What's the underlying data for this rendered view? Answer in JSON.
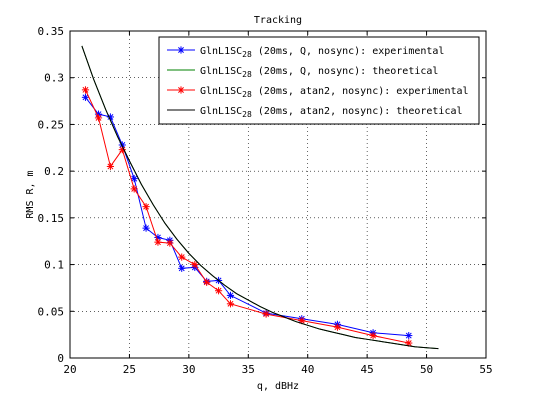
{
  "chart_data": {
    "type": "line",
    "title": "Tracking",
    "xlabel": "q, dBHz",
    "ylabel": "RMS R, m",
    "xlim": [
      20,
      55
    ],
    "ylim": [
      0,
      0.35
    ],
    "xticks": [
      "20",
      "25",
      "30",
      "35",
      "40",
      "45",
      "50",
      "55"
    ],
    "yticks": [
      "0",
      "0.05",
      "0.1",
      "0.15",
      "0.2",
      "0.25",
      "0.3",
      "0.35"
    ],
    "grid": true,
    "legend_position": "top-right",
    "series": [
      {
        "name_main": "GlnL1SC",
        "name_sub": "28",
        "name_rest": " (20ms, Q, nosync): experimental",
        "color": "#0000ff",
        "marker": "asterisk",
        "x": [
          21.3,
          22.4,
          23.4,
          24.4,
          25.4,
          26.4,
          27.4,
          28.4,
          29.4,
          30.5,
          31.5,
          32.5,
          33.5,
          36.5,
          39.5,
          42.5,
          45.5,
          48.5
        ],
        "y": [
          0.279,
          0.261,
          0.258,
          0.228,
          0.192,
          0.139,
          0.129,
          0.126,
          0.096,
          0.097,
          0.082,
          0.083,
          0.067,
          0.048,
          0.042,
          0.036,
          0.027,
          0.024
        ]
      },
      {
        "name_main": "GlnL1SC",
        "name_sub": "28",
        "name_rest": " (20ms, Q, nosync): theoretical",
        "color": "#008000",
        "marker": "none",
        "x": [
          21,
          22,
          23,
          24,
          25,
          26,
          27,
          28,
          29,
          30,
          31,
          32,
          33,
          34,
          35,
          36,
          37,
          38,
          39,
          40,
          41,
          42,
          43,
          44,
          45,
          46,
          47,
          48,
          49,
          50,
          51
        ],
        "y": [
          0.334,
          0.298,
          0.266,
          0.237,
          0.211,
          0.186,
          0.164,
          0.144,
          0.127,
          0.112,
          0.099,
          0.088,
          0.078,
          0.069,
          0.062,
          0.055,
          0.049,
          0.044,
          0.039,
          0.035,
          0.031,
          0.028,
          0.025,
          0.022,
          0.02,
          0.018,
          0.016,
          0.014,
          0.012,
          0.011,
          0.01
        ]
      },
      {
        "name_main": "GlnL1SC",
        "name_sub": "28",
        "name_rest": " (20ms, atan2, nosync): experimental",
        "color": "#ff0000",
        "marker": "asterisk",
        "x": [
          21.3,
          22.4,
          23.4,
          24.4,
          25.4,
          26.4,
          27.4,
          28.4,
          29.4,
          30.5,
          31.5,
          32.5,
          33.5,
          36.5,
          39.5,
          42.5,
          45.5,
          48.5
        ],
        "y": [
          0.287,
          0.257,
          0.205,
          0.223,
          0.181,
          0.162,
          0.124,
          0.123,
          0.108,
          0.1,
          0.081,
          0.072,
          0.058,
          0.047,
          0.04,
          0.033,
          0.024,
          0.016
        ]
      },
      {
        "name_main": "GlnL1SC",
        "name_sub": "28",
        "name_rest": " (20ms, atan2, nosync): theoretical",
        "color": "#000000",
        "marker": "none",
        "x": [
          21,
          22,
          23,
          24,
          25,
          26,
          27,
          28,
          29,
          30,
          31,
          32,
          33,
          34,
          35,
          36,
          37,
          38,
          39,
          40,
          41,
          42,
          43,
          44,
          45,
          46,
          47,
          48,
          49,
          50,
          51
        ],
        "y": [
          0.334,
          0.298,
          0.266,
          0.237,
          0.211,
          0.186,
          0.164,
          0.144,
          0.127,
          0.112,
          0.099,
          0.088,
          0.078,
          0.069,
          0.062,
          0.055,
          0.049,
          0.044,
          0.039,
          0.035,
          0.031,
          0.028,
          0.025,
          0.022,
          0.02,
          0.018,
          0.016,
          0.014,
          0.012,
          0.011,
          0.01
        ]
      }
    ]
  }
}
